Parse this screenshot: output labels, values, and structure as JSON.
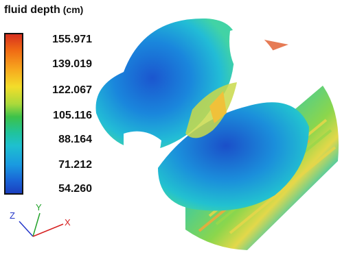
{
  "legend": {
    "title": "fluid depth",
    "unit": "(cm)",
    "ticks": [
      "155.971",
      "139.019",
      "122.067",
      "105.116",
      "88.164",
      "71.212",
      "54.260"
    ]
  },
  "axes": {
    "z": "Z",
    "y": "Y",
    "x": "X"
  },
  "colors": {
    "high": "#d7301f",
    "mid": "#3cc24a",
    "low": "#1b3fbf",
    "axis_x": "#d62020",
    "axis_y": "#22a22a",
    "axis_z": "#2234c8"
  }
}
